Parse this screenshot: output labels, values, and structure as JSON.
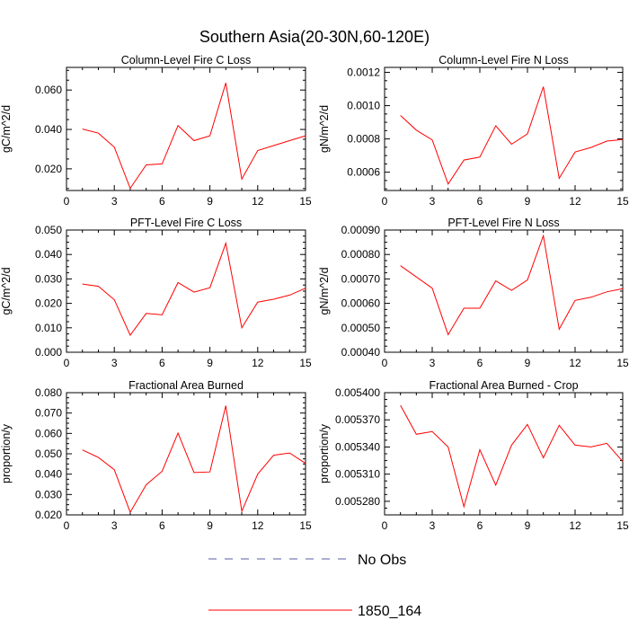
{
  "figure": {
    "title": "Southern Asia(20-30N,60-120E)"
  },
  "legend": {
    "entries": [
      {
        "label": "No Obs",
        "color": "#5a5aa8",
        "style": "dashed"
      },
      {
        "label": "1850_164",
        "color": "#ff0000",
        "style": "solid"
      }
    ]
  },
  "chart_data": [
    {
      "type": "line",
      "title": "Column-Level Fire C Loss",
      "xlabel": "",
      "ylabel": "gC/m^2/d",
      "xlim": [
        0,
        15
      ],
      "ylim": [
        0.009,
        0.0715
      ],
      "xticks": [
        0,
        3,
        6,
        9,
        12,
        15
      ],
      "xtick_labels": [
        "0",
        "3",
        "6",
        "9",
        "12",
        "15"
      ],
      "yticks": [
        0.02,
        0.04,
        0.06
      ],
      "ytick_labels": [
        "0.020",
        "0.040",
        "0.060"
      ],
      "x": [
        1,
        2,
        3,
        4,
        5,
        6,
        7,
        8,
        9,
        10,
        11,
        12,
        13,
        14,
        15
      ],
      "series": [
        {
          "name": "1850_164",
          "color": "#ff0000",
          "values": [
            0.0402,
            0.0381,
            0.031,
            0.0101,
            0.022,
            0.0225,
            0.042,
            0.0343,
            0.0368,
            0.0636,
            0.0148,
            0.0293,
            0.0318,
            0.0343,
            0.0368
          ]
        }
      ]
    },
    {
      "type": "line",
      "title": "Column-Level Fire N Loss",
      "xlabel": "",
      "ylabel": "gN/m^2/d",
      "xlim": [
        0,
        15
      ],
      "ylim": [
        0.00049,
        0.00123
      ],
      "xticks": [
        0,
        3,
        6,
        9,
        12,
        15
      ],
      "xtick_labels": [
        "0",
        "3",
        "6",
        "9",
        "12",
        "15"
      ],
      "yticks": [
        0.0006,
        0.0008,
        0.001,
        0.0012
      ],
      "ytick_labels": [
        "0.0006",
        "0.0008",
        "0.0010",
        "0.0012"
      ],
      "x": [
        1,
        2,
        3,
        4,
        5,
        6,
        7,
        8,
        9,
        10,
        11,
        12,
        13,
        14,
        15
      ],
      "series": [
        {
          "name": "1850_164",
          "color": "#ff0000",
          "values": [
            0.000941,
            0.000853,
            0.000794,
            0.000529,
            0.000673,
            0.000691,
            0.000879,
            0.000768,
            0.000831,
            0.001114,
            0.000563,
            0.000721,
            0.000749,
            0.000787,
            0.000797
          ]
        }
      ]
    },
    {
      "type": "line",
      "title": "PFT-Level Fire C Loss",
      "xlabel": "",
      "ylabel": "gC/m^2/d",
      "xlim": [
        0,
        15
      ],
      "ylim": [
        0.0,
        0.05
      ],
      "xticks": [
        0,
        3,
        6,
        9,
        12,
        15
      ],
      "xtick_labels": [
        "0",
        "3",
        "6",
        "9",
        "12",
        "15"
      ],
      "yticks": [
        0.0,
        0.01,
        0.02,
        0.03,
        0.04,
        0.05
      ],
      "ytick_labels": [
        "0.000",
        "0.010",
        "0.020",
        "0.030",
        "0.040",
        "0.050"
      ],
      "x": [
        1,
        2,
        3,
        4,
        5,
        6,
        7,
        8,
        9,
        10,
        11,
        12,
        13,
        14,
        15
      ],
      "series": [
        {
          "name": "1850_164",
          "color": "#ff0000",
          "values": [
            0.0279,
            0.027,
            0.0215,
            0.007,
            0.0159,
            0.0153,
            0.0285,
            0.0246,
            0.0264,
            0.0446,
            0.01,
            0.0205,
            0.0217,
            0.0234,
            0.0262
          ]
        }
      ]
    },
    {
      "type": "line",
      "title": "PFT-Level Fire N Loss",
      "xlabel": "",
      "ylabel": "gN/m^2/d",
      "xlim": [
        0,
        15
      ],
      "ylim": [
        0.0004,
        0.0009
      ],
      "xticks": [
        0,
        3,
        6,
        9,
        12,
        15
      ],
      "xtick_labels": [
        "0",
        "3",
        "6",
        "9",
        "12",
        "15"
      ],
      "yticks": [
        0.0004,
        0.0005,
        0.0006,
        0.0007,
        0.0008,
        0.0009
      ],
      "ytick_labels": [
        "0.00040",
        "0.00050",
        "0.00060",
        "0.00070",
        "0.00080",
        "0.00090"
      ],
      "x": [
        1,
        2,
        3,
        4,
        5,
        6,
        7,
        8,
        9,
        10,
        11,
        12,
        13,
        14,
        15
      ],
      "series": [
        {
          "name": "1850_164",
          "color": "#ff0000",
          "values": [
            0.000754,
            0.000708,
            0.000662,
            0.000472,
            0.00058,
            0.00058,
            0.000692,
            0.000653,
            0.000696,
            0.000877,
            0.000494,
            0.000612,
            0.000625,
            0.000647,
            0.00066
          ]
        }
      ]
    },
    {
      "type": "line",
      "title": "Fractional Area Burned",
      "xlabel": "",
      "ylabel": "proportion/y",
      "xlim": [
        0,
        15
      ],
      "ylim": [
        0.02,
        0.08
      ],
      "xticks": [
        0,
        3,
        6,
        9,
        12,
        15
      ],
      "xtick_labels": [
        "0",
        "3",
        "6",
        "9",
        "12",
        "15"
      ],
      "yticks": [
        0.02,
        0.03,
        0.04,
        0.05,
        0.06,
        0.07,
        0.08
      ],
      "ytick_labels": [
        "0.020",
        "0.030",
        "0.040",
        "0.050",
        "0.060",
        "0.070",
        "0.080"
      ],
      "x": [
        1,
        2,
        3,
        4,
        5,
        6,
        7,
        8,
        9,
        10,
        11,
        12,
        13,
        14,
        15
      ],
      "series": [
        {
          "name": "1850_164",
          "color": "#ff0000",
          "values": [
            0.0519,
            0.0482,
            0.0422,
            0.0213,
            0.0348,
            0.0414,
            0.0602,
            0.0408,
            0.0411,
            0.0736,
            0.0218,
            0.04,
            0.0493,
            0.0504,
            0.0453
          ]
        }
      ]
    },
    {
      "type": "line",
      "title": "Fractional Area Burned - Crop",
      "xlabel": "",
      "ylabel": "proportion/y",
      "xlim": [
        0,
        15
      ],
      "ylim": [
        0.005265,
        0.0054
      ],
      "xticks": [
        0,
        3,
        6,
        9,
        12,
        15
      ],
      "xtick_labels": [
        "0",
        "3",
        "6",
        "9",
        "12",
        "15"
      ],
      "yticks": [
        0.00528,
        0.00531,
        0.00534,
        0.00537,
        0.0054
      ],
      "ytick_labels": [
        "0.005280",
        "0.005310",
        "0.005340",
        "0.005370",
        "0.005400"
      ],
      "x": [
        1,
        2,
        3,
        4,
        5,
        6,
        7,
        8,
        9,
        10,
        11,
        12,
        13,
        14,
        15
      ],
      "series": [
        {
          "name": "1850_164",
          "color": "#ff0000",
          "values": [
            0.005386,
            0.005354,
            0.005357,
            0.00534,
            0.005274,
            0.005337,
            0.005298,
            0.005342,
            0.005365,
            0.005328,
            0.005364,
            0.005342,
            0.00534,
            0.005344,
            0.005324
          ]
        }
      ]
    }
  ]
}
